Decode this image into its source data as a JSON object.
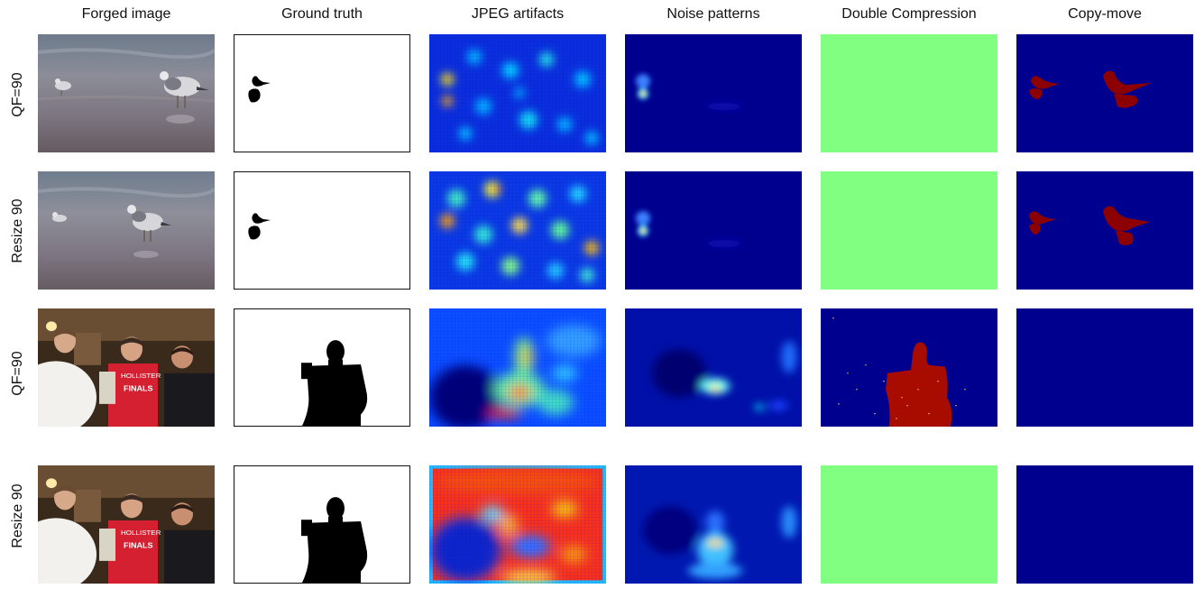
{
  "column_headers": [
    "Forged image",
    "Ground truth",
    "JPEG artifacts",
    "Noise patterns",
    "Double Compression",
    "Copy-move"
  ],
  "row_labels": [
    "QF=90",
    "Resize 90",
    "QF=90",
    "Resize 90"
  ],
  "scenes": [
    "seagulls",
    "seagulls",
    "three-men-photo",
    "three-men-photo"
  ],
  "overlay_text": {
    "shirt_line1": "HOLLISTER",
    "shirt_line2": "FINALS"
  },
  "colors": {
    "jet_dark": "#00007f",
    "jet_blue": "#0000ff",
    "jet_cyan": "#00ffff",
    "jet_yellow": "#ffff00",
    "jet_red": "#ff0000",
    "dc_green": "#80ff80",
    "mask_black": "#000000"
  }
}
